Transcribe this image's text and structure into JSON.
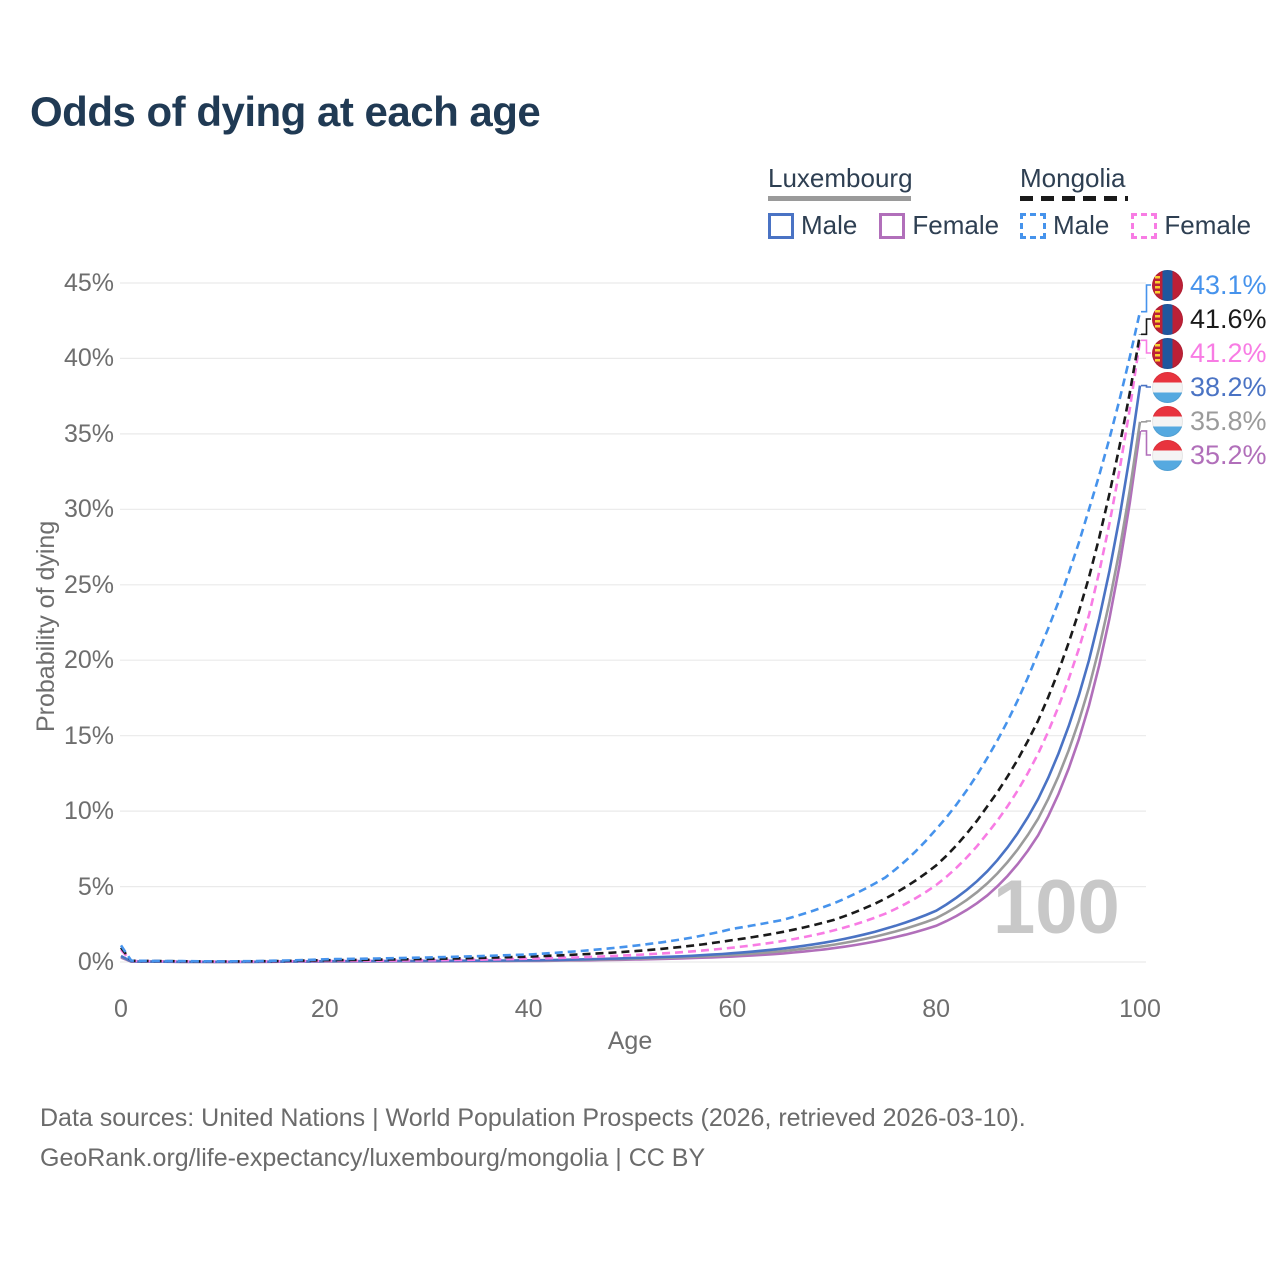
{
  "title": "Odds of dying at each age",
  "watermark": "100",
  "footer": {
    "line1": "Data sources: United Nations | World Population Prospects (2026, retrieved 2026-03-10).",
    "line2": "GeoRank.org/life-expectancy/luxembourg/mongolia | CC BY"
  },
  "legend": {
    "groups": [
      {
        "country": "Luxembourg",
        "line_style": "solid",
        "line_color": "#9a9a9a",
        "items": [
          {
            "label": "Male",
            "series": "lu_male"
          },
          {
            "label": "Female",
            "series": "lu_female"
          }
        ]
      },
      {
        "country": "Mongolia",
        "line_style": "dashed",
        "line_color": "#1a1a1a",
        "items": [
          {
            "label": "Male",
            "series": "mn_male"
          },
          {
            "label": "Female",
            "series": "mn_female"
          }
        ]
      }
    ]
  },
  "flags": {
    "mongolia": {
      "red": "#bc2036",
      "blue": "#20579e",
      "yellow": "#f9cf30"
    },
    "luxembourg": {
      "red": "#e8333e",
      "white": "#f4f4f4",
      "blue": "#55a9e0"
    }
  },
  "colors": {
    "grid": "#eaeaea",
    "title_text": "#203a54",
    "axis_text": "#6e6e6e",
    "legend_text": "#2e3f52"
  },
  "chart_data": {
    "type": "line",
    "title": "Odds of dying at each age",
    "xlabel": "Age",
    "ylabel": "Probability of dying",
    "x_ticks": [
      0,
      20,
      40,
      60,
      80,
      100
    ],
    "y_ticks_percent": [
      0,
      5,
      10,
      15,
      20,
      25,
      30,
      35,
      40,
      45
    ],
    "xlim": [
      0,
      100
    ],
    "ylim_percent": [
      0,
      45
    ],
    "grid": "horizontal-only",
    "legend_position": "top-right",
    "ages": [
      0,
      1,
      10,
      20,
      30,
      40,
      50,
      55,
      60,
      65,
      70,
      75,
      80,
      85,
      90,
      95,
      100
    ],
    "series": [
      {
        "id": "mn_male",
        "name": "Mongolia Male",
        "country": "Mongolia",
        "sex": "male",
        "line": "dashed",
        "color": "#4693ec",
        "flag": "mongolia",
        "end_label": "43.1%",
        "values_percent": [
          1.1,
          0.09,
          0.04,
          0.18,
          0.3,
          0.5,
          1.05,
          1.5,
          2.2,
          2.8,
          3.9,
          5.6,
          8.8,
          13.5,
          20.5,
          30.0,
          43.1
        ]
      },
      {
        "id": "mn_both",
        "name": "Mongolia (both sexes)",
        "country": "Mongolia",
        "sex": "both",
        "line": "dashed",
        "color": "#1a1a1a",
        "flag": "mongolia",
        "end_label": "41.6%",
        "values_percent": [
          0.95,
          0.08,
          0.03,
          0.12,
          0.2,
          0.36,
          0.7,
          1.0,
          1.45,
          2.0,
          2.8,
          4.2,
          6.4,
          10.3,
          16.0,
          25.5,
          41.6
        ]
      },
      {
        "id": "mn_female",
        "name": "Mongolia Female",
        "country": "Mongolia",
        "sex": "female",
        "line": "dashed",
        "color": "#f87ce4",
        "flag": "mongolia",
        "end_label": "41.2%",
        "values_percent": [
          0.8,
          0.07,
          0.025,
          0.07,
          0.11,
          0.22,
          0.45,
          0.65,
          0.95,
          1.4,
          2.1,
          3.2,
          5.1,
          8.5,
          13.8,
          23.0,
          41.2
        ]
      },
      {
        "id": "lu_male",
        "name": "Luxembourg Male",
        "country": "Luxembourg",
        "sex": "male",
        "line": "solid",
        "color": "#4a73c4",
        "flag": "luxembourg",
        "end_label": "38.2%",
        "values_percent": [
          0.4,
          0.03,
          0.01,
          0.05,
          0.07,
          0.11,
          0.26,
          0.38,
          0.58,
          0.9,
          1.4,
          2.2,
          3.4,
          6.0,
          10.8,
          20.0,
          38.2
        ]
      },
      {
        "id": "lu_both",
        "name": "Luxembourg (both sexes)",
        "country": "Luxembourg",
        "sex": "both",
        "line": "solid",
        "color": "#9b9b9b",
        "flag": "luxembourg",
        "end_label": "35.8%",
        "values_percent": [
          0.35,
          0.028,
          0.009,
          0.04,
          0.055,
          0.09,
          0.21,
          0.31,
          0.47,
          0.73,
          1.15,
          1.85,
          2.9,
          5.2,
          9.5,
          18.2,
          35.8
        ]
      },
      {
        "id": "lu_female",
        "name": "Luxembourg Female",
        "country": "Luxembourg",
        "sex": "female",
        "line": "solid",
        "color": "#b16fba",
        "flag": "luxembourg",
        "end_label": "35.2%",
        "values_percent": [
          0.3,
          0.025,
          0.008,
          0.03,
          0.04,
          0.07,
          0.16,
          0.24,
          0.36,
          0.57,
          0.92,
          1.5,
          2.4,
          4.4,
          8.4,
          17.0,
          35.2
        ]
      }
    ]
  }
}
